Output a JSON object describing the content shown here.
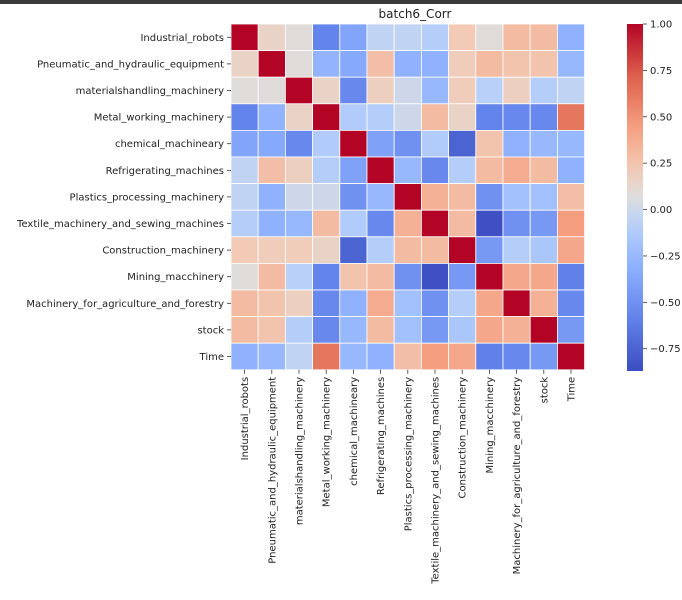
{
  "chart_data": {
    "type": "heatmap",
    "title": "batch6_Corr",
    "colormap": "coolwarm",
    "vmin": -0.87,
    "vmax": 1.0,
    "grid_lines": "white",
    "labels": [
      "Industrial_robots",
      "Pneumatic_and_hydraulic_equipment",
      "materialshandling_machinery",
      "Metal_working_machinery",
      "chemical_machineary",
      "Refrigerating_machines",
      "Plastics_processing_machinery",
      "Textile_machinery_and_sewing_machines",
      "Construction_machinery",
      "Mining_macchinery",
      "Machinery_for_agriculture_and_forestry",
      "stock",
      "Time"
    ],
    "matrix": [
      [
        1.0,
        0.15,
        0.08,
        -0.58,
        -0.38,
        -0.05,
        -0.05,
        -0.1,
        0.22,
        0.08,
        0.3,
        0.3,
        -0.3
      ],
      [
        0.15,
        1.0,
        0.08,
        -0.28,
        -0.35,
        0.28,
        -0.3,
        -0.3,
        0.2,
        0.3,
        0.25,
        0.25,
        -0.25
      ],
      [
        0.08,
        0.08,
        1.0,
        0.15,
        -0.55,
        0.18,
        0.0,
        -0.25,
        0.2,
        -0.08,
        0.18,
        -0.1,
        -0.05
      ],
      [
        -0.58,
        -0.28,
        0.15,
        1.0,
        -0.12,
        -0.1,
        0.0,
        0.3,
        0.15,
        -0.58,
        -0.55,
        -0.55,
        0.62
      ],
      [
        -0.38,
        -0.35,
        -0.55,
        -0.12,
        1.0,
        -0.4,
        -0.5,
        -0.12,
        -0.75,
        0.25,
        -0.3,
        -0.25,
        -0.25
      ],
      [
        -0.05,
        0.28,
        0.18,
        -0.1,
        -0.4,
        1.0,
        -0.25,
        -0.55,
        -0.1,
        0.3,
        0.38,
        0.3,
        -0.3
      ],
      [
        -0.05,
        -0.3,
        0.0,
        0.0,
        -0.5,
        -0.25,
        1.0,
        0.35,
        0.3,
        -0.5,
        -0.2,
        -0.2,
        0.28
      ],
      [
        -0.1,
        -0.3,
        -0.25,
        0.3,
        -0.12,
        -0.55,
        0.35,
        1.0,
        0.3,
        -0.85,
        -0.5,
        -0.45,
        0.45
      ],
      [
        0.22,
        0.2,
        0.2,
        0.15,
        -0.75,
        -0.1,
        0.3,
        0.3,
        1.0,
        -0.45,
        -0.1,
        -0.15,
        0.4
      ],
      [
        0.08,
        0.3,
        -0.08,
        -0.58,
        0.25,
        0.3,
        -0.5,
        -0.85,
        -0.45,
        1.0,
        0.4,
        0.4,
        -0.6
      ],
      [
        0.3,
        0.25,
        0.18,
        -0.55,
        -0.3,
        0.38,
        -0.2,
        -0.5,
        -0.1,
        0.4,
        1.0,
        0.35,
        -0.55
      ],
      [
        0.3,
        0.25,
        -0.1,
        -0.55,
        -0.25,
        0.3,
        -0.2,
        -0.45,
        -0.15,
        0.4,
        0.35,
        1.0,
        -0.45
      ],
      [
        -0.3,
        -0.25,
        -0.05,
        0.62,
        -0.25,
        -0.3,
        0.28,
        0.45,
        0.4,
        -0.6,
        -0.55,
        -0.45,
        1.0
      ]
    ],
    "colorbar_ticks": [
      "1.00",
      "0.75",
      "0.50",
      "0.25",
      "0.00",
      "−0.25",
      "−0.50",
      "−0.75"
    ],
    "colorbar_tick_values": [
      1.0,
      0.75,
      0.5,
      0.25,
      0.0,
      -0.25,
      -0.5,
      -0.75
    ]
  }
}
